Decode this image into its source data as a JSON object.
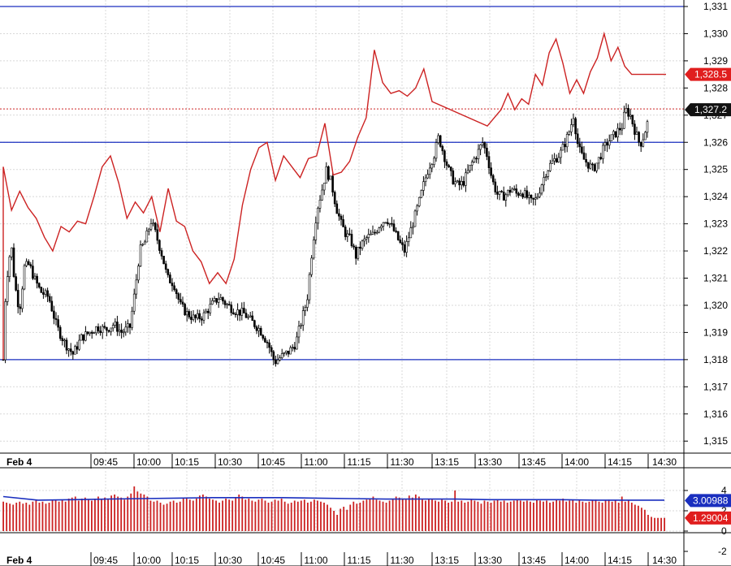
{
  "chart_data": [
    {
      "type": "candlestick",
      "panel": "price",
      "x_axis": {
        "date_label": "Feb 4",
        "tick_labels": [
          "09:45",
          "10:00",
          "10:15",
          "10:30",
          "10:45",
          "11:00",
          "11:15",
          "11:30",
          "13:15",
          "13:30",
          "13:45",
          "14:00",
          "14:15",
          "14:30"
        ]
      },
      "y_axis": {
        "tick_labels": [
          "1,331",
          "1,330",
          "1,329",
          "1,328",
          "1,327",
          "1,326",
          "1,325",
          "1,324",
          "1,323",
          "1,322",
          "1,321",
          "1,320",
          "1,319",
          "1,318",
          "1,317",
          "1,316",
          "1,315"
        ],
        "ylim": [
          1314.6,
          1331.2
        ]
      },
      "grid": true,
      "horizontal_levels": [
        1331.0,
        1326.0,
        1318.0
      ],
      "current_price_label": "1,327.2",
      "current_price": 1327.2,
      "series": [
        {
          "name": "",
          "kind": "line",
          "color": "#cc2222",
          "last_value_label": "1,328.5",
          "points": [
            [
              "09:30",
              1325.1
            ],
            [
              "09:33",
              1323.5
            ],
            [
              "09:36",
              1324.2
            ],
            [
              "09:39",
              1323.6
            ],
            [
              "09:42",
              1323.2
            ],
            [
              "09:45",
              1322.5
            ],
            [
              "09:48",
              1322.0
            ],
            [
              "09:51",
              1322.9
            ],
            [
              "09:54",
              1322.7
            ],
            [
              "09:57",
              1323.1
            ],
            [
              "10:00",
              1323.0
            ],
            [
              "10:03",
              1324.0
            ],
            [
              "10:06",
              1325.1
            ],
            [
              "10:09",
              1325.5
            ],
            [
              "10:12",
              1324.5
            ],
            [
              "10:15",
              1323.2
            ],
            [
              "10:18",
              1323.8
            ],
            [
              "10:21",
              1323.4
            ],
            [
              "10:24",
              1324.0
            ],
            [
              "10:27",
              1322.7
            ],
            [
              "10:30",
              1324.3
            ],
            [
              "10:33",
              1323.1
            ],
            [
              "10:36",
              1322.9
            ],
            [
              "10:39",
              1322.0
            ],
            [
              "10:42",
              1321.6
            ],
            [
              "10:45",
              1320.8
            ],
            [
              "10:48",
              1321.2
            ],
            [
              "10:51",
              1320.8
            ],
            [
              "10:54",
              1321.7
            ],
            [
              "10:57",
              1323.7
            ],
            [
              "11:00",
              1325.0
            ],
            [
              "11:03",
              1325.8
            ],
            [
              "11:06",
              1326.0
            ],
            [
              "11:09",
              1324.6
            ],
            [
              "11:12",
              1325.5
            ],
            [
              "11:15",
              1325.1
            ],
            [
              "11:18",
              1324.7
            ],
            [
              "11:21",
              1325.4
            ],
            [
              "11:24",
              1325.5
            ],
            [
              "11:27",
              1326.7
            ],
            [
              "11:30",
              1324.8
            ],
            [
              "11:33",
              1324.9
            ],
            [
              "11:36",
              1325.3
            ],
            [
              "11:39",
              1326.2
            ],
            [
              "11:42",
              1326.9
            ],
            [
              "11:45",
              1329.4
            ],
            [
              "11:48",
              1328.2
            ],
            [
              "11:51",
              1327.8
            ],
            [
              "11:54",
              1327.9
            ],
            [
              "11:57",
              1327.7
            ],
            [
              "12:00",
              1328.0
            ],
            [
              "12:03",
              1328.7
            ],
            [
              "12:06",
              1327.5
            ],
            [
              "13:00",
              1326.6
            ],
            [
              "13:03",
              1326.9
            ],
            [
              "13:06",
              1327.2
            ],
            [
              "13:09",
              1327.8
            ],
            [
              "13:12",
              1327.2
            ],
            [
              "13:15",
              1327.6
            ],
            [
              "13:18",
              1327.4
            ],
            [
              "13:21",
              1328.5
            ],
            [
              "13:24",
              1328.1
            ],
            [
              "13:27",
              1329.3
            ],
            [
              "13:30",
              1329.8
            ],
            [
              "13:33",
              1328.9
            ],
            [
              "13:36",
              1327.8
            ],
            [
              "13:39",
              1328.3
            ],
            [
              "13:42",
              1327.8
            ],
            [
              "13:45",
              1328.6
            ],
            [
              "13:48",
              1329.1
            ],
            [
              "13:51",
              1330.0
            ],
            [
              "13:54",
              1329.0
            ],
            [
              "13:57",
              1329.5
            ],
            [
              "14:00",
              1328.8
            ],
            [
              "14:03",
              1328.5
            ],
            [
              "14:06",
              1328.5
            ],
            [
              "14:09",
              1328.5
            ],
            [
              "14:15",
              1328.5
            ],
            [
              "14:18",
              1328.5
            ]
          ]
        }
      ]
    },
    {
      "type": "bar",
      "panel": "volume",
      "x_axis": {
        "date_label": "Feb 4",
        "tick_labels": [
          "09:45",
          "10:00",
          "10:15",
          "10:30",
          "10:45",
          "11:00",
          "11:15",
          "11:30",
          "13:15",
          "13:30",
          "13:45",
          "14:00",
          "14:15",
          "14:30"
        ]
      },
      "y_axis": {
        "tick_labels": [
          "4",
          "2",
          "0",
          "-2"
        ],
        "ylim": [
          -2.6,
          4.6
        ]
      },
      "grid": true,
      "series": [
        {
          "name": "",
          "kind": "line",
          "color": "#1a2fbf",
          "last_value_label": "3.00988",
          "values": [
            3.4,
            3.05,
            3.1,
            3.15,
            3.2,
            3.25,
            3.3,
            3.3,
            3.3,
            3.25,
            3.2,
            3.15,
            3.15,
            3.15,
            3.1,
            3.1,
            3.1,
            3.05,
            3.05,
            3.05
          ]
        },
        {
          "name": "",
          "kind": "bar",
          "color": "#cc2222",
          "last_value_label": "1.29004",
          "values": [
            2.9,
            2.8,
            2.7,
            2.6,
            2.8,
            2.9,
            2.7,
            2.8,
            2.6,
            2.9,
            3.0,
            2.8,
            2.9,
            2.7,
            2.8,
            3.0,
            3.1,
            2.9,
            3.1,
            2.9,
            3.2,
            3.3,
            3.4,
            3.0,
            3.2,
            3.3,
            3.1,
            3.0,
            3.2,
            3.4,
            3.1,
            3.3,
            3.2,
            3.5,
            3.6,
            3.4,
            3.3,
            3.1,
            3.4,
            3.7,
            4.4,
            3.9,
            3.7,
            3.6,
            3.4,
            3.0,
            2.9,
            3.0,
            2.8,
            2.6,
            2.7,
            2.9,
            3.0,
            2.8,
            2.9,
            3.2,
            3.3,
            3.1,
            3.0,
            3.2,
            3.5,
            3.6,
            3.4,
            3.2,
            3.1,
            3.0,
            2.8,
            3.0,
            3.2,
            3.1,
            3.0,
            3.3,
            3.6,
            3.4,
            3.1,
            3.2,
            3.0,
            2.9,
            3.1,
            3.2,
            3.0,
            2.8,
            2.9,
            3.1,
            3.0,
            3.2,
            2.9,
            2.7,
            2.8,
            3.0,
            2.9,
            3.0,
            3.1,
            2.8,
            2.9,
            3.1,
            3.0,
            2.9,
            2.8,
            2.6,
            2.3,
            2.0,
            1.6,
            2.2,
            2.4,
            2.1,
            2.6,
            2.9,
            2.7,
            2.8,
            3.0,
            3.1,
            3.2,
            3.4,
            3.1,
            3.0,
            2.9,
            2.8,
            3.0,
            3.2,
            3.4,
            3.3,
            3.2,
            3.1,
            3.5,
            3.3,
            3.6,
            3.4,
            3.1,
            3.0,
            3.2,
            3.1,
            3.0,
            2.9,
            3.1,
            3.0,
            2.8,
            2.9,
            4.0,
            2.9,
            3.0,
            2.8,
            2.9,
            3.1,
            3.0,
            2.9,
            2.7,
            3.0,
            2.9,
            2.8,
            3.0,
            3.1,
            2.9,
            3.0,
            2.8,
            2.9,
            3.0,
            3.1,
            3.0,
            2.9,
            3.0,
            2.9,
            2.8,
            3.1,
            3.0,
            2.9,
            3.0,
            2.8,
            2.9,
            3.1,
            3.0,
            3.2,
            2.9,
            3.0,
            3.1,
            2.8,
            3.0,
            2.9,
            2.8,
            2.9,
            3.0,
            3.1,
            2.9,
            2.8,
            3.0,
            3.1,
            2.9,
            3.0,
            2.8,
            3.4,
            2.9,
            3.0,
            2.8,
            2.6,
            2.5,
            2.3,
            2.1,
            1.6,
            1.4,
            1.3,
            1.3,
            1.3,
            1.3
          ]
        }
      ]
    }
  ]
}
